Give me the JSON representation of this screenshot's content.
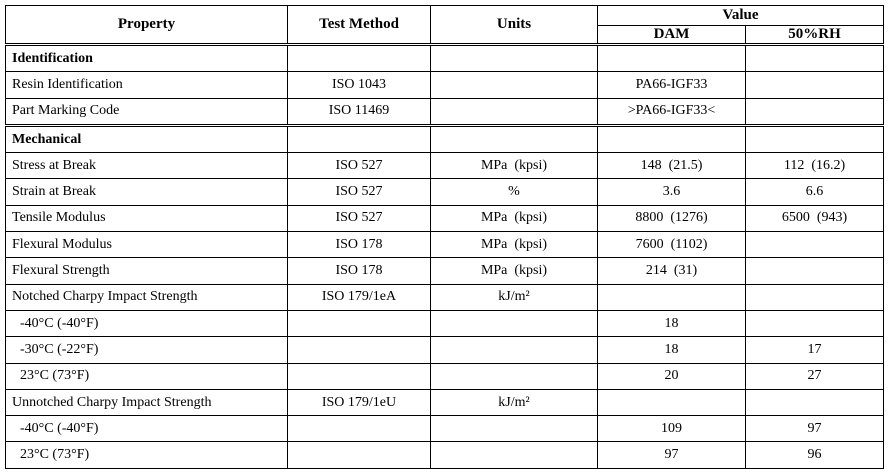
{
  "header": {
    "property": "Property",
    "test_method": "Test Method",
    "units": "Units",
    "value": "Value",
    "dam": "DAM",
    "rh": "50%RH"
  },
  "rows": [
    {
      "section": "Identification"
    },
    {
      "cells": [
        "Resin Identification",
        "ISO 1043",
        null,
        "PA66-IGF33",
        null
      ]
    },
    {
      "cells": [
        "Part Marking Code",
        "ISO 11469",
        null,
        ">PA66-IGF33<",
        null
      ]
    },
    {
      "section": "Mechanical"
    },
    {
      "cells": [
        "Stress at Break",
        "ISO 527",
        "MPa  (kpsi)",
        "148  (21.5)",
        "112  (16.2)"
      ]
    },
    {
      "cells": [
        "Strain at Break",
        "ISO 527",
        "%",
        "3.6",
        "6.6"
      ]
    },
    {
      "cells": [
        "Tensile Modulus",
        "ISO 527",
        "MPa  (kpsi)",
        "8800  (1276)",
        "6500  (943)"
      ]
    },
    {
      "cells": [
        "Flexural Modulus",
        "ISO 178",
        "MPa  (kpsi)",
        "7600  (1102)",
        null
      ]
    },
    {
      "cells": [
        "Flexural Strength",
        "ISO 178",
        "MPa  (kpsi)",
        "214  (31)",
        null
      ]
    },
    {
      "cells": [
        "Notched Charpy Impact Strength",
        "ISO 179/1eA",
        "kJ/m²",
        null,
        null
      ]
    },
    {
      "cells": [
        "-40°C (-40°F)",
        null,
        null,
        "18",
        null
      ],
      "indent": true
    },
    {
      "cells": [
        "-30°C (-22°F)",
        null,
        null,
        "18",
        "17"
      ],
      "indent": true
    },
    {
      "cells": [
        "23°C (73°F)",
        null,
        null,
        "20",
        "27"
      ],
      "indent": true
    },
    {
      "cells": [
        "Unnotched Charpy Impact Strength",
        "ISO 179/1eU",
        "kJ/m²",
        null,
        null
      ]
    },
    {
      "cells": [
        "-40°C (-40°F)",
        null,
        null,
        "109",
        "97"
      ],
      "indent": true
    },
    {
      "cells": [
        "23°C (73°F)",
        null,
        null,
        "97",
        "96"
      ],
      "indent": true
    }
  ]
}
